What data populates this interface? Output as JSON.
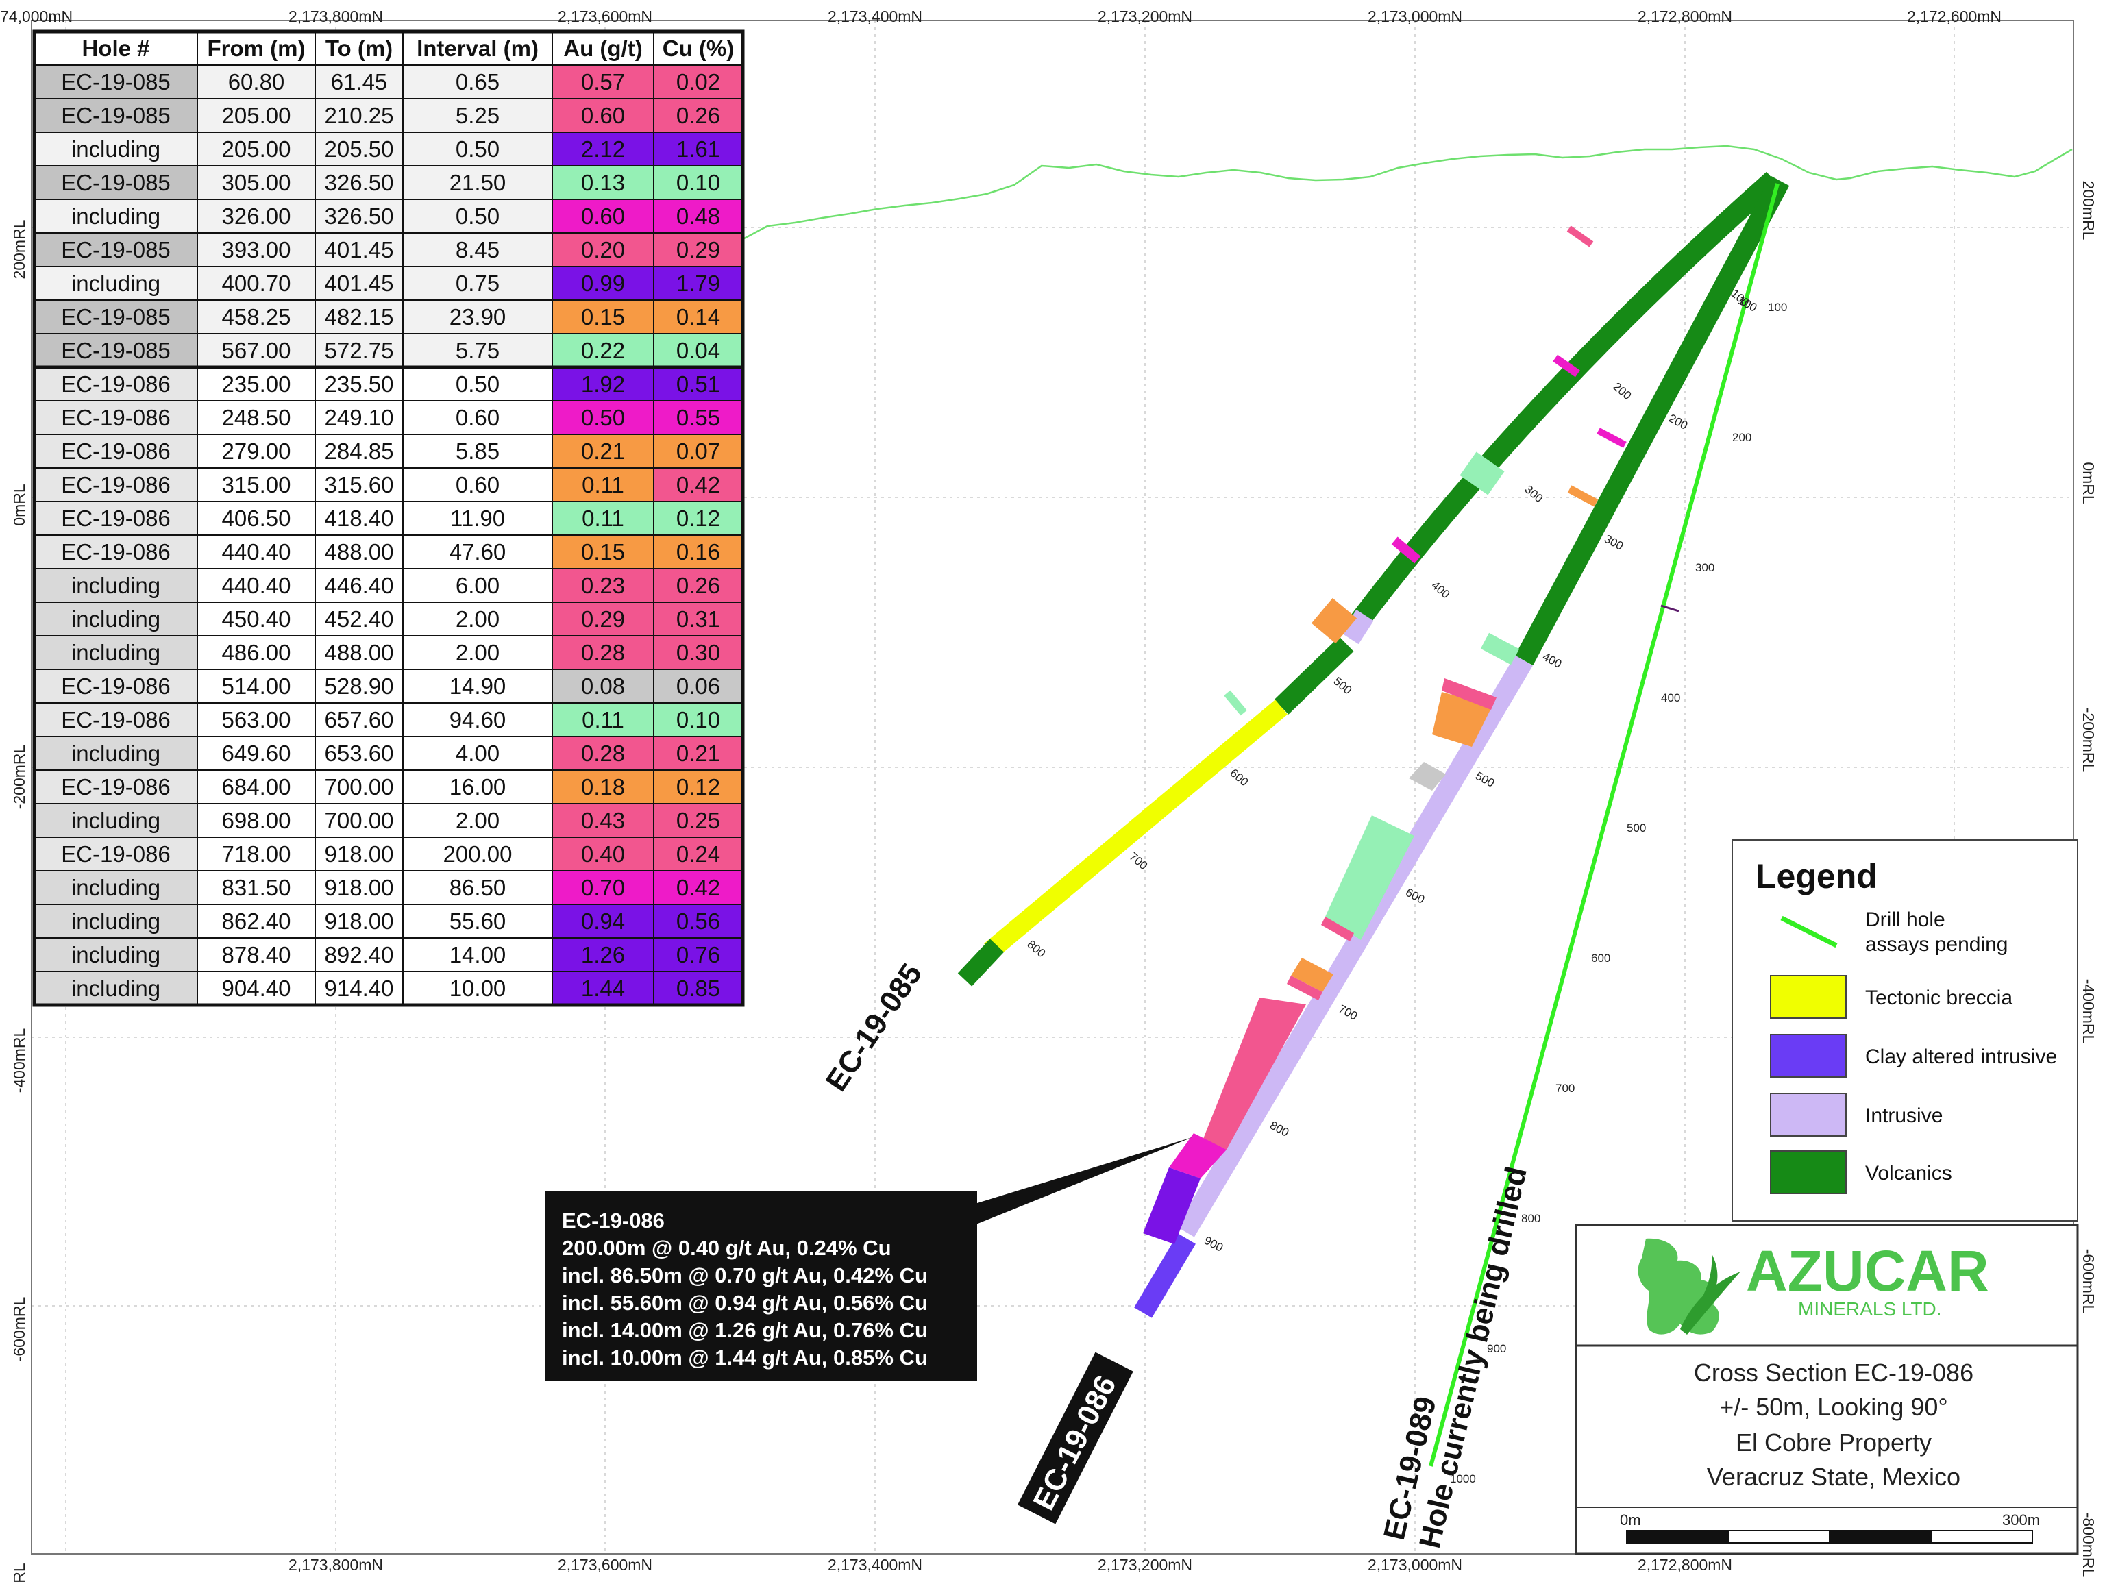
{
  "axes": {
    "northings_top": [
      "74,000mN",
      "2,173,800mN",
      "2,173,600mN",
      "2,173,400mN",
      "2,173,200mN",
      "2,173,000mN",
      "2,172,800mN",
      "2,172,600mN"
    ],
    "northings_bottom": [
      "2,173,800mN",
      "2,173,600mN",
      "2,173,400mN",
      "2,173,200mN",
      "2,173,000mN",
      "2,172,800mN"
    ],
    "elev_left": [
      "200mRL",
      "0mRL",
      "-200mRL",
      "-400mRL",
      "-600mRL",
      "RL"
    ],
    "elev_right": [
      "200mRL",
      "0mRL",
      "-200mRL",
      "-400mRL",
      "-600mRL",
      "-800mRL"
    ]
  },
  "table": {
    "headers": [
      "Hole #",
      "From (m)",
      "To (m)",
      "Interval (m)",
      "Au (g/t)",
      "Cu (%)"
    ],
    "rows": [
      {
        "hole": "EC-19-085",
        "from": "60.80",
        "to": "61.45",
        "interval": "0.65",
        "au": "0.57",
        "cu": "0.02",
        "au_color": "#f2568f",
        "cu_color": "#f2568f"
      },
      {
        "hole": "EC-19-085",
        "from": "205.00",
        "to": "210.25",
        "interval": "5.25",
        "au": "0.60",
        "cu": "0.26",
        "au_color": "#f2568f",
        "cu_color": "#f2568f"
      },
      {
        "hole": "including",
        "from": "205.00",
        "to": "205.50",
        "interval": "0.50",
        "au": "2.12",
        "cu": "1.61",
        "au_color": "#7a12e6",
        "cu_color": "#7a12e6"
      },
      {
        "hole": "EC-19-085",
        "from": "305.00",
        "to": "326.50",
        "interval": "21.50",
        "au": "0.13",
        "cu": "0.10",
        "au_color": "#95f0b5",
        "cu_color": "#95f0b5"
      },
      {
        "hole": "including",
        "from": "326.00",
        "to": "326.50",
        "interval": "0.50",
        "au": "0.60",
        "cu": "0.48",
        "au_color": "#ee1bc8",
        "cu_color": "#ee1bc8"
      },
      {
        "hole": "EC-19-085",
        "from": "393.00",
        "to": "401.45",
        "interval": "8.45",
        "au": "0.20",
        "cu": "0.29",
        "au_color": "#f2568f",
        "cu_color": "#f2568f"
      },
      {
        "hole": "including",
        "from": "400.70",
        "to": "401.45",
        "interval": "0.75",
        "au": "0.99",
        "cu": "1.79",
        "au_color": "#7a12e6",
        "cu_color": "#7a12e6"
      },
      {
        "hole": "EC-19-085",
        "from": "458.25",
        "to": "482.15",
        "interval": "23.90",
        "au": "0.15",
        "cu": "0.14",
        "au_color": "#f79a44",
        "cu_color": "#f79a44"
      },
      {
        "hole": "EC-19-085",
        "from": "567.00",
        "to": "572.75",
        "interval": "5.75",
        "au": "0.22",
        "cu": "0.04",
        "au_color": "#95f0b5",
        "cu_color": "#95f0b5"
      },
      {
        "hole": "EC-19-086",
        "from": "235.00",
        "to": "235.50",
        "interval": "0.50",
        "au": "1.92",
        "cu": "0.51",
        "au_color": "#7a12e6",
        "cu_color": "#7a12e6"
      },
      {
        "hole": "EC-19-086",
        "from": "248.50",
        "to": "249.10",
        "interval": "0.60",
        "au": "0.50",
        "cu": "0.55",
        "au_color": "#ee1bc8",
        "cu_color": "#ee1bc8"
      },
      {
        "hole": "EC-19-086",
        "from": "279.00",
        "to": "284.85",
        "interval": "5.85",
        "au": "0.21",
        "cu": "0.07",
        "au_color": "#f79a44",
        "cu_color": "#f79a44"
      },
      {
        "hole": "EC-19-086",
        "from": "315.00",
        "to": "315.60",
        "interval": "0.60",
        "au": "0.11",
        "cu": "0.42",
        "au_color": "#f79a44",
        "cu_color": "#f2568f"
      },
      {
        "hole": "EC-19-086",
        "from": "406.50",
        "to": "418.40",
        "interval": "11.90",
        "au": "0.11",
        "cu": "0.12",
        "au_color": "#95f0b5",
        "cu_color": "#95f0b5"
      },
      {
        "hole": "EC-19-086",
        "from": "440.40",
        "to": "488.00",
        "interval": "47.60",
        "au": "0.15",
        "cu": "0.16",
        "au_color": "#f79a44",
        "cu_color": "#f79a44"
      },
      {
        "hole": "including",
        "from": "440.40",
        "to": "446.40",
        "interval": "6.00",
        "au": "0.23",
        "cu": "0.26",
        "au_color": "#f2568f",
        "cu_color": "#f2568f"
      },
      {
        "hole": "including",
        "from": "450.40",
        "to": "452.40",
        "interval": "2.00",
        "au": "0.29",
        "cu": "0.31",
        "au_color": "#f2568f",
        "cu_color": "#f2568f"
      },
      {
        "hole": "including",
        "from": "486.00",
        "to": "488.00",
        "interval": "2.00",
        "au": "0.28",
        "cu": "0.30",
        "au_color": "#f2568f",
        "cu_color": "#f2568f"
      },
      {
        "hole": "EC-19-086",
        "from": "514.00",
        "to": "528.90",
        "interval": "14.90",
        "au": "0.08",
        "cu": "0.06",
        "au_color": "#c8c8c8",
        "cu_color": "#c8c8c8"
      },
      {
        "hole": "EC-19-086",
        "from": "563.00",
        "to": "657.60",
        "interval": "94.60",
        "au": "0.11",
        "cu": "0.10",
        "au_color": "#95f0b5",
        "cu_color": "#95f0b5"
      },
      {
        "hole": "including",
        "from": "649.60",
        "to": "653.60",
        "interval": "4.00",
        "au": "0.28",
        "cu": "0.21",
        "au_color": "#f2568f",
        "cu_color": "#f2568f"
      },
      {
        "hole": "EC-19-086",
        "from": "684.00",
        "to": "700.00",
        "interval": "16.00",
        "au": "0.18",
        "cu": "0.12",
        "au_color": "#f79a44",
        "cu_color": "#f79a44"
      },
      {
        "hole": "including",
        "from": "698.00",
        "to": "700.00",
        "interval": "2.00",
        "au": "0.43",
        "cu": "0.25",
        "au_color": "#f2568f",
        "cu_color": "#f2568f"
      },
      {
        "hole": "EC-19-086",
        "from": "718.00",
        "to": "918.00",
        "interval": "200.00",
        "au": "0.40",
        "cu": "0.24",
        "au_color": "#f2568f",
        "cu_color": "#f2568f"
      },
      {
        "hole": "including",
        "from": "831.50",
        "to": "918.00",
        "interval": "86.50",
        "au": "0.70",
        "cu": "0.42",
        "au_color": "#ee1bc8",
        "cu_color": "#ee1bc8"
      },
      {
        "hole": "including",
        "from": "862.40",
        "to": "918.00",
        "interval": "55.60",
        "au": "0.94",
        "cu": "0.56",
        "au_color": "#7a12e6",
        "cu_color": "#7a12e6"
      },
      {
        "hole": "including",
        "from": "878.40",
        "to": "892.40",
        "interval": "14.00",
        "au": "1.26",
        "cu": "0.76",
        "au_color": "#7a12e6",
        "cu_color": "#7a12e6"
      },
      {
        "hole": "including",
        "from": "904.40",
        "to": "914.40",
        "interval": "10.00",
        "au": "1.44",
        "cu": "0.85",
        "au_color": "#7a12e6",
        "cu_color": "#7a12e6"
      }
    ]
  },
  "holes": {
    "h085": {
      "label": "EC-19-085",
      "depth_marks": [
        "100",
        "200",
        "300",
        "400",
        "500",
        "600",
        "700",
        "800"
      ]
    },
    "h086": {
      "label": "EC-19-086",
      "depth_marks": [
        "100",
        "200",
        "300",
        "400",
        "500",
        "600",
        "700",
        "800",
        "900"
      ]
    },
    "h089": {
      "label": "EC-19-089",
      "sublabel": "Hole currently being drilled",
      "depth_marks": [
        "100",
        "200",
        "300",
        "400",
        "500",
        "600",
        "700",
        "800",
        "900",
        "1000"
      ]
    }
  },
  "annotation": {
    "lines": [
      "EC-19-086",
      "200.00m @ 0.40 g/t Au, 0.24% Cu",
      "incl. 86.50m @ 0.70 g/t Au, 0.42% Cu",
      "incl. 55.60m @ 0.94 g/t Au, 0.56% Cu",
      "incl. 14.00m @ 1.26 g/t Au, 0.76% Cu",
      "incl. 10.00m @ 1.44 g/t Au, 0.85% Cu"
    ]
  },
  "legend": {
    "title": "Legend",
    "items": [
      {
        "label_1": "Drill hole",
        "label_2": "assays pending",
        "color": "#33ee22"
      },
      {
        "label": "Tectonic breccia",
        "color": "#f0ff00"
      },
      {
        "label": "Clay altered intrusive",
        "color": "#6a3cf5"
      },
      {
        "label": "Intrusive",
        "color": "#cdb8f5"
      },
      {
        "label": "Volcanics",
        "color": "#168a16"
      }
    ]
  },
  "titleblock": {
    "company": "AZUCAR",
    "company_sub": "MINERALS LTD.",
    "lines": [
      "Cross Section EC-19-086",
      "+/- 50m, Looking 90°",
      "El Cobre Property",
      "Veracruz State, Mexico"
    ],
    "scale_start": "0m",
    "scale_end": "300m"
  }
}
